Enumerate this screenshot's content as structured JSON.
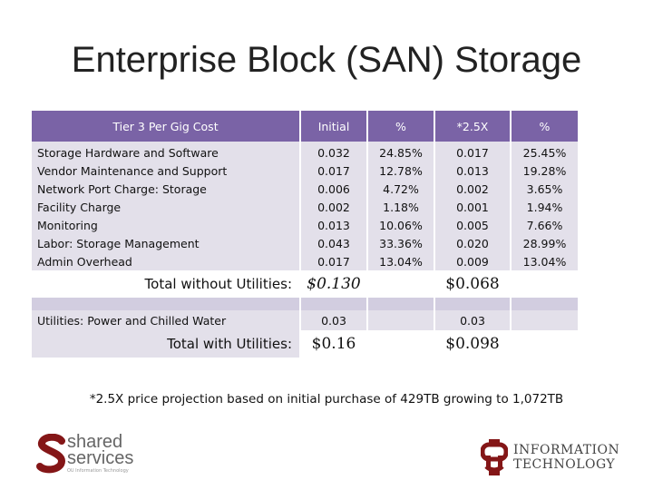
{
  "title": "Enterprise Block (SAN) Storage",
  "table": {
    "headers": [
      "Tier 3 Per Gig Cost",
      "Initial",
      "%",
      "*2.5X",
      "%"
    ],
    "rows": [
      {
        "label": "Storage Hardware and Software",
        "initial": "0.032",
        "pct1": "24.85%",
        "x25": "0.017",
        "pct2": "25.45%"
      },
      {
        "label": "Vendor Maintenance and Support",
        "initial": "0.017",
        "pct1": "12.78%",
        "x25": "0.013",
        "pct2": "19.28%"
      },
      {
        "label": "Network Port Charge: Storage",
        "initial": "0.006",
        "pct1": "4.72%",
        "x25": "0.002",
        "pct2": "3.65%"
      },
      {
        "label": "Facility Charge",
        "initial": "0.002",
        "pct1": "1.18%",
        "x25": "0.001",
        "pct2": "1.94%"
      },
      {
        "label": "Monitoring",
        "initial": "0.013",
        "pct1": "10.06%",
        "x25": "0.005",
        "pct2": "7.66%"
      },
      {
        "label": "Labor: Storage Management",
        "initial": "0.043",
        "pct1": "33.36%",
        "x25": "0.020",
        "pct2": "28.99%"
      },
      {
        "label": "Admin Overhead",
        "initial": "0.017",
        "pct1": "13.04%",
        "x25": "0.009",
        "pct2": "13.04%"
      }
    ],
    "total_without": {
      "label": "Total without Utilities:",
      "initial": "$0.130",
      "x25": "$0.068"
    },
    "utilities": {
      "label": "Utilities: Power and Chilled Water",
      "initial": "0.03",
      "x25": "0.03"
    },
    "total_with": {
      "label": "Total with Utilities:",
      "initial": "$0.16",
      "x25": "$0.098"
    }
  },
  "footnote": "*2.5X price projection based on initial purchase of 429TB growing to 1,072TB",
  "logos": {
    "shared_services_line1": "shared",
    "shared_services_line2": "services",
    "shared_services_sub": "OU Information Technology",
    "it_line1": "INFORMATION",
    "it_line2": "TECHNOLOGY"
  },
  "colors": {
    "header": "#7a63a6",
    "row": "#e3e0ea",
    "accent_red": "#841617"
  }
}
